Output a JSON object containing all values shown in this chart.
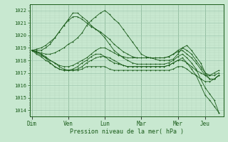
{
  "xlabel": "Pression niveau de la mer( hPa )",
  "ylim": [
    1013.5,
    1022.5
  ],
  "yticks": [
    1014,
    1015,
    1016,
    1017,
    1018,
    1019,
    1020,
    1021,
    1022
  ],
  "background_color": "#c8e8d0",
  "grid_color_major": "#a0c8b0",
  "grid_color_minor": "#b8d8c0",
  "line_color": "#1a5c1a",
  "days": [
    "Dim",
    "Ven",
    "Lun",
    "Mar",
    "Mer",
    "Jeu"
  ],
  "day_x": [
    0,
    8,
    16,
    24,
    32,
    38
  ],
  "xlim": [
    -0.5,
    42
  ],
  "num_points": 42,
  "series": [
    [
      1018.8,
      1018.7,
      1018.6,
      1018.5,
      1018.5,
      1018.6,
      1018.8,
      1019.0,
      1019.3,
      1019.5,
      1019.8,
      1020.2,
      1020.8,
      1021.2,
      1021.5,
      1021.8,
      1022.0,
      1021.7,
      1021.3,
      1021.0,
      1020.5,
      1020.0,
      1019.5,
      1019.0,
      1018.5,
      1018.3,
      1018.2,
      1018.1,
      1018.0,
      1018.0,
      1018.0,
      1018.1,
      1018.5,
      1019.0,
      1019.2,
      1018.8,
      1018.3,
      1017.8,
      1017.0,
      1016.5,
      1016.5,
      1016.8
    ],
    [
      1018.8,
      1018.6,
      1018.4,
      1018.2,
      1018.0,
      1017.8,
      1017.5,
      1017.3,
      1017.2,
      1017.3,
      1017.5,
      1017.8,
      1018.0,
      1018.3,
      1018.5,
      1018.5,
      1018.3,
      1018.0,
      1017.8,
      1017.7,
      1017.6,
      1017.5,
      1017.5,
      1017.5,
      1017.5,
      1017.5,
      1017.5,
      1017.5,
      1017.5,
      1017.5,
      1017.6,
      1017.8,
      1018.0,
      1018.0,
      1017.8,
      1017.5,
      1017.2,
      1017.0,
      1016.8,
      1016.8,
      1017.0,
      1017.2
    ],
    [
      1018.8,
      1018.5,
      1018.3,
      1018.0,
      1017.8,
      1017.5,
      1017.3,
      1017.2,
      1017.2,
      1017.2,
      1017.2,
      1017.3,
      1017.5,
      1017.5,
      1017.5,
      1017.5,
      1017.5,
      1017.3,
      1017.2,
      1017.2,
      1017.2,
      1017.2,
      1017.2,
      1017.2,
      1017.2,
      1017.2,
      1017.2,
      1017.2,
      1017.2,
      1017.2,
      1017.2,
      1017.3,
      1017.5,
      1017.5,
      1017.3,
      1017.0,
      1016.8,
      1016.5,
      1016.3,
      1016.3,
      1016.5,
      1016.8
    ],
    [
      1018.8,
      1018.9,
      1019.0,
      1019.2,
      1019.5,
      1019.8,
      1020.3,
      1020.8,
      1021.2,
      1021.5,
      1021.5,
      1021.3,
      1021.0,
      1020.7,
      1020.5,
      1020.3,
      1020.0,
      1019.7,
      1019.3,
      1019.0,
      1018.7,
      1018.5,
      1018.3,
      1018.2,
      1018.2,
      1018.2,
      1018.2,
      1018.2,
      1018.2,
      1018.2,
      1018.3,
      1018.5,
      1018.8,
      1019.0,
      1018.8,
      1018.5,
      1018.0,
      1017.5,
      1017.0,
      1016.8,
      1016.8,
      1017.0
    ],
    [
      1018.8,
      1018.7,
      1018.5,
      1018.3,
      1018.0,
      1017.8,
      1017.6,
      1017.5,
      1017.5,
      1017.6,
      1017.8,
      1018.0,
      1018.2,
      1018.5,
      1018.8,
      1019.0,
      1019.0,
      1018.8,
      1018.6,
      1018.4,
      1018.3,
      1018.2,
      1018.2,
      1018.2,
      1018.2,
      1018.2,
      1018.2,
      1018.2,
      1018.2,
      1018.2,
      1018.3,
      1018.5,
      1018.7,
      1018.8,
      1018.5,
      1018.2,
      1017.8,
      1017.3,
      1016.8,
      1016.5,
      1016.5,
      1016.8
    ],
    [
      1018.8,
      1018.8,
      1018.8,
      1019.0,
      1019.3,
      1019.8,
      1020.3,
      1020.8,
      1021.3,
      1021.8,
      1021.8,
      1021.5,
      1021.2,
      1020.8,
      1020.5,
      1020.2,
      1019.8,
      1019.3,
      1018.8,
      1018.5,
      1018.2,
      1018.0,
      1017.8,
      1017.7,
      1017.7,
      1017.7,
      1017.7,
      1017.7,
      1017.7,
      1017.7,
      1017.8,
      1018.0,
      1018.3,
      1018.5,
      1018.2,
      1017.8,
      1017.3,
      1016.5,
      1015.8,
      1015.3,
      1014.8,
      1013.8
    ],
    [
      1018.8,
      1018.7,
      1018.5,
      1018.2,
      1017.8,
      1017.5,
      1017.3,
      1017.2,
      1017.2,
      1017.2,
      1017.3,
      1017.5,
      1017.8,
      1018.0,
      1018.2,
      1018.3,
      1018.3,
      1018.2,
      1018.0,
      1017.8,
      1017.6,
      1017.5,
      1017.5,
      1017.5,
      1017.5,
      1017.5,
      1017.5,
      1017.5,
      1017.5,
      1017.5,
      1017.6,
      1017.8,
      1018.0,
      1018.2,
      1017.8,
      1017.3,
      1016.8,
      1016.0,
      1015.2,
      1014.8,
      1014.3,
      1013.8
    ]
  ]
}
